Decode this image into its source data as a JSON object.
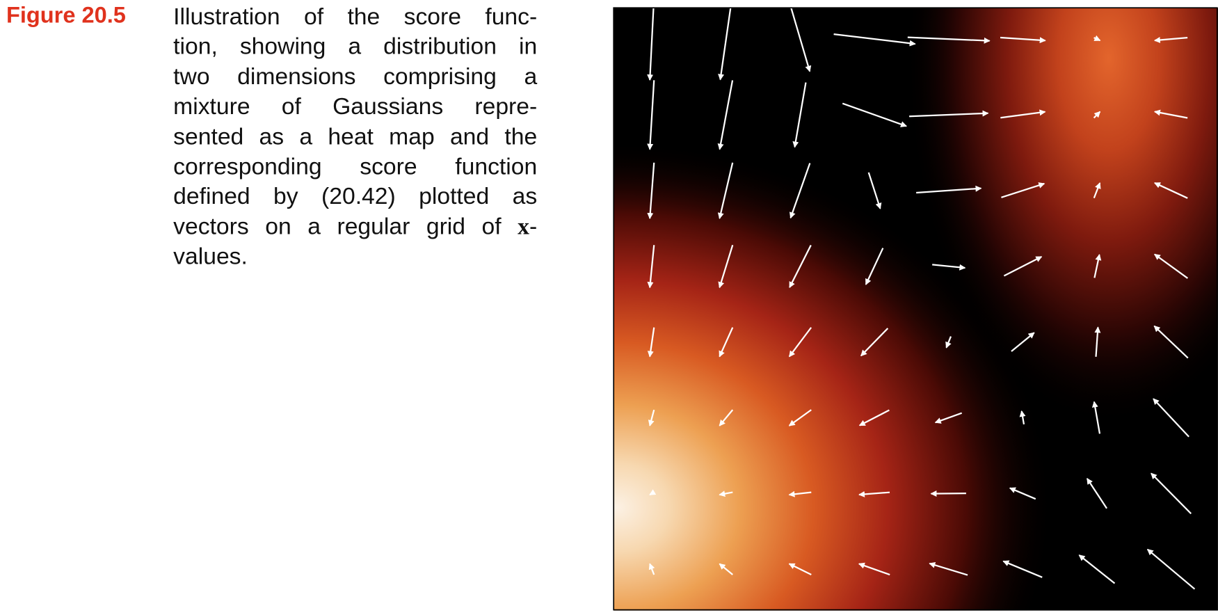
{
  "figure": {
    "label": "Figure 20.5",
    "caption_lines": [
      "Illustration of the score func-",
      "tion, showing a distribution in",
      "two dimensions comprising a",
      "mixture of Gaussians repre-",
      "sented as a heat map and the",
      "corresponding score function",
      "defined by (20.42) plotted as",
      [
        "vectors on a regular grid of ",
        "x",
        "-"
      ],
      "values."
    ]
  }
}
